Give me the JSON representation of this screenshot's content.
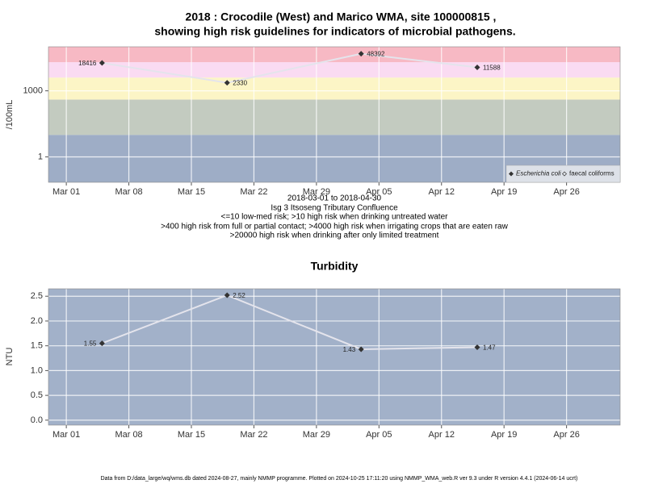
{
  "chart_data": [
    {
      "type": "line",
      "title": "2018 : Crocodile (West) and Marico WMA, site 100000815 ,",
      "subtitle": "showing high risk guidelines for indicators of microbial pathogens.",
      "y_label": "/100mL",
      "x_label": "2018-03-01 to 2018-04-30",
      "notes": [
        "Isg 3 Itsoseng Tributary Confluence",
        "<=10 low-med risk; >10 high risk when drinking untreated water",
        ">400 high risk from full or partial contact; >4000 high risk when irrigating crops that are eaten raw",
        ">20000 high risk when drinking after only limited treatment"
      ],
      "x": [
        "2018-03-05",
        "2018-03-19",
        "2018-04-03",
        "2018-04-16"
      ],
      "series": [
        {
          "name": "Escherichia coli",
          "color": "#333333",
          "values": [
            18416,
            2330,
            48392,
            11588
          ]
        },
        {
          "name": "faecal coliforms",
          "color": "#333333",
          "values": [
            null,
            null,
            null,
            null
          ]
        }
      ],
      "line_color": "#e4e4ec",
      "log_y": true,
      "ylim": [
        0.07,
        100000
      ],
      "yticks": [
        1,
        1000
      ],
      "bands": [
        {
          "max": 10,
          "color": "#9eadc6"
        },
        {
          "max": 400,
          "color": "#c3cbc0"
        },
        {
          "max": 4000,
          "color": "#fcf5c6"
        },
        {
          "max": 20000,
          "color": "#fadbf2"
        },
        {
          "max": 100000,
          "color": "#f7b9c4"
        }
      ],
      "xlim": [
        "2018-02-27",
        "2018-05-02"
      ],
      "xticks": [
        {
          "value": "2018-03-01",
          "label": "Mar 01"
        },
        {
          "value": "2018-03-08",
          "label": "Mar 08"
        },
        {
          "value": "2018-03-15",
          "label": "Mar 15"
        },
        {
          "value": "2018-03-22",
          "label": "Mar 22"
        },
        {
          "value": "2018-03-29",
          "label": "Mar 29"
        },
        {
          "value": "2018-04-05",
          "label": "Apr 05"
        },
        {
          "value": "2018-04-12",
          "label": "Apr 12"
        },
        {
          "value": "2018-04-19",
          "label": "Apr 19"
        },
        {
          "value": "2018-04-26",
          "label": "Apr 26"
        }
      ],
      "legend": "lower right",
      "grid": true
    },
    {
      "type": "line",
      "title": "Turbidity",
      "y_label": "NTU",
      "x": [
        "2018-03-05",
        "2018-03-19",
        "2018-04-03",
        "2018-04-16"
      ],
      "series": [
        {
          "name": "Turbidity",
          "color": "#333333",
          "values": [
            1.55,
            2.52,
            1.43,
            1.47
          ]
        }
      ],
      "line_color": "#e4e4ec",
      "background": "#a2b1c9",
      "ylim": [
        -0.1,
        2.65
      ],
      "yticks": [
        {
          "value": 0,
          "label": "0.0"
        },
        0.5,
        {
          "value": 1,
          "label": "1.0"
        },
        1.5,
        {
          "value": 2,
          "label": "2.0"
        },
        2.5
      ],
      "xlim": [
        "2018-02-27",
        "2018-05-02"
      ],
      "xticks": [
        {
          "value": "2018-03-01",
          "label": "Mar 01"
        },
        {
          "value": "2018-03-08",
          "label": "Mar 08"
        },
        {
          "value": "2018-03-15",
          "label": "Mar 15"
        },
        {
          "value": "2018-03-22",
          "label": "Mar 22"
        },
        {
          "value": "2018-03-29",
          "label": "Mar 29"
        },
        {
          "value": "2018-04-05",
          "label": "Apr 05"
        },
        {
          "value": "2018-04-12",
          "label": "Apr 12"
        },
        {
          "value": "2018-04-19",
          "label": "Apr 19"
        },
        {
          "value": "2018-04-26",
          "label": "Apr 26"
        }
      ],
      "grid": true
    }
  ],
  "footer": "Data from D:/data_large/wq/wms.db dated 2024-08-27, mainly NMMP programme. Plotted on 2024-10-25 17:11:20 using NMMP_WMA_web.R ver 9.3 under R version 4.4.1 (2024-06-14 ucrt)"
}
